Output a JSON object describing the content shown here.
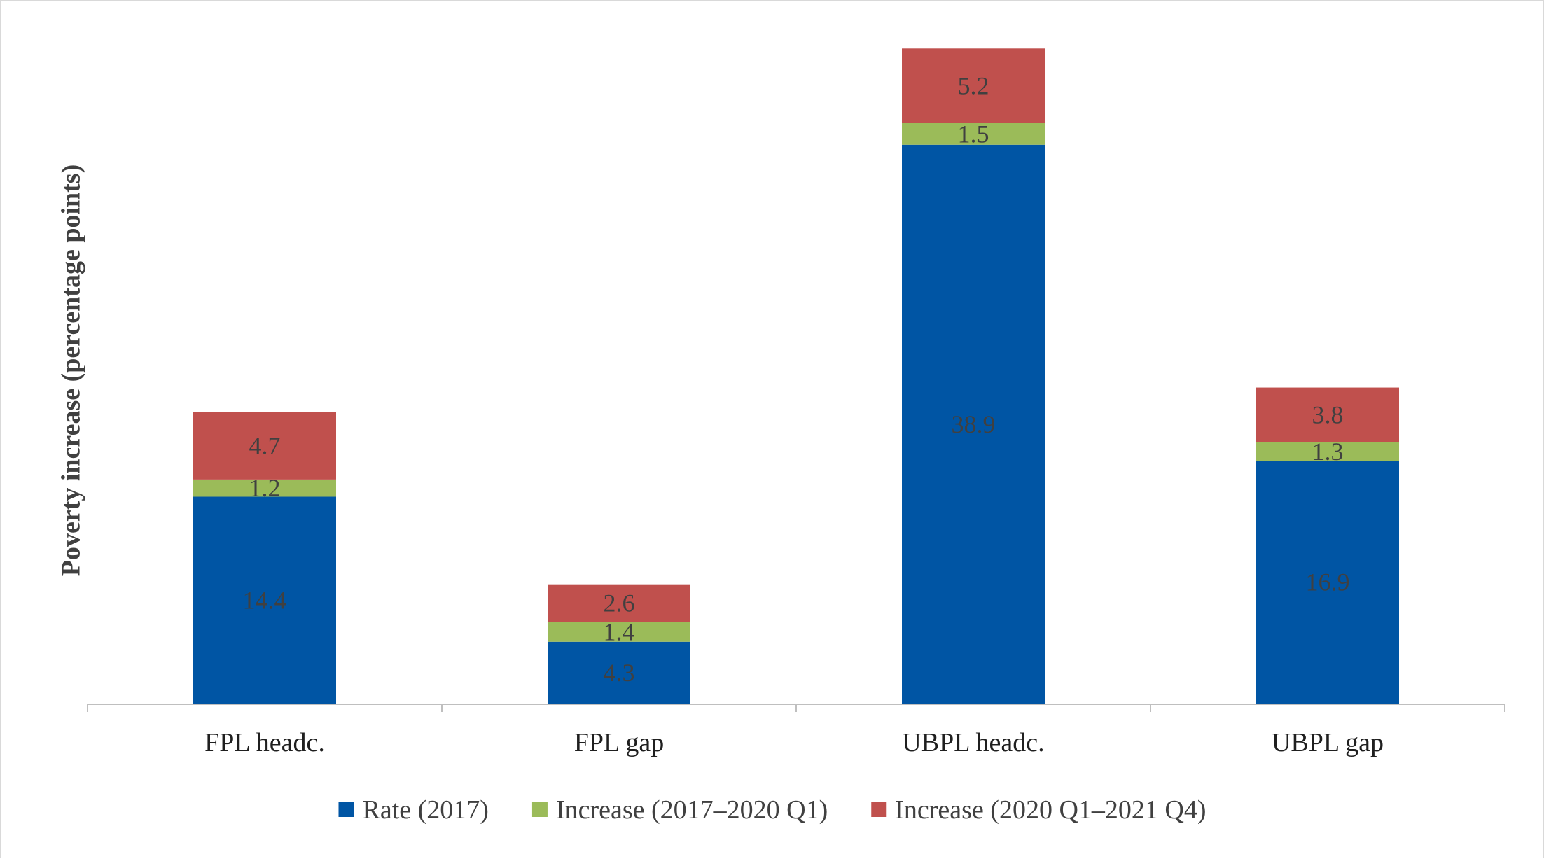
{
  "chart_data": {
    "type": "bar",
    "stacked": true,
    "title": "",
    "xlabel": "",
    "ylabel": "Poverty increase (percentage points)",
    "categories": [
      "FPL headc.",
      "FPL gap",
      "UBPL headc.",
      "UBPL gap"
    ],
    "series": [
      {
        "name": "Rate (2017)",
        "color": "#0055a4",
        "values": [
          14.4,
          4.3,
          38.9,
          16.9
        ]
      },
      {
        "name": "Increase (2017–2020 Q1)",
        "color": "#9bbb59",
        "values": [
          1.2,
          1.4,
          1.5,
          1.3
        ]
      },
      {
        "name": "Increase (2020 Q1–2021 Q4)",
        "color": "#c0504d",
        "values": [
          4.7,
          2.6,
          5.2,
          3.8
        ]
      }
    ],
    "ylim": [
      0,
      50
    ],
    "grid": false,
    "y_axis_visible": false,
    "data_labels": true,
    "legend_position": "bottom"
  }
}
